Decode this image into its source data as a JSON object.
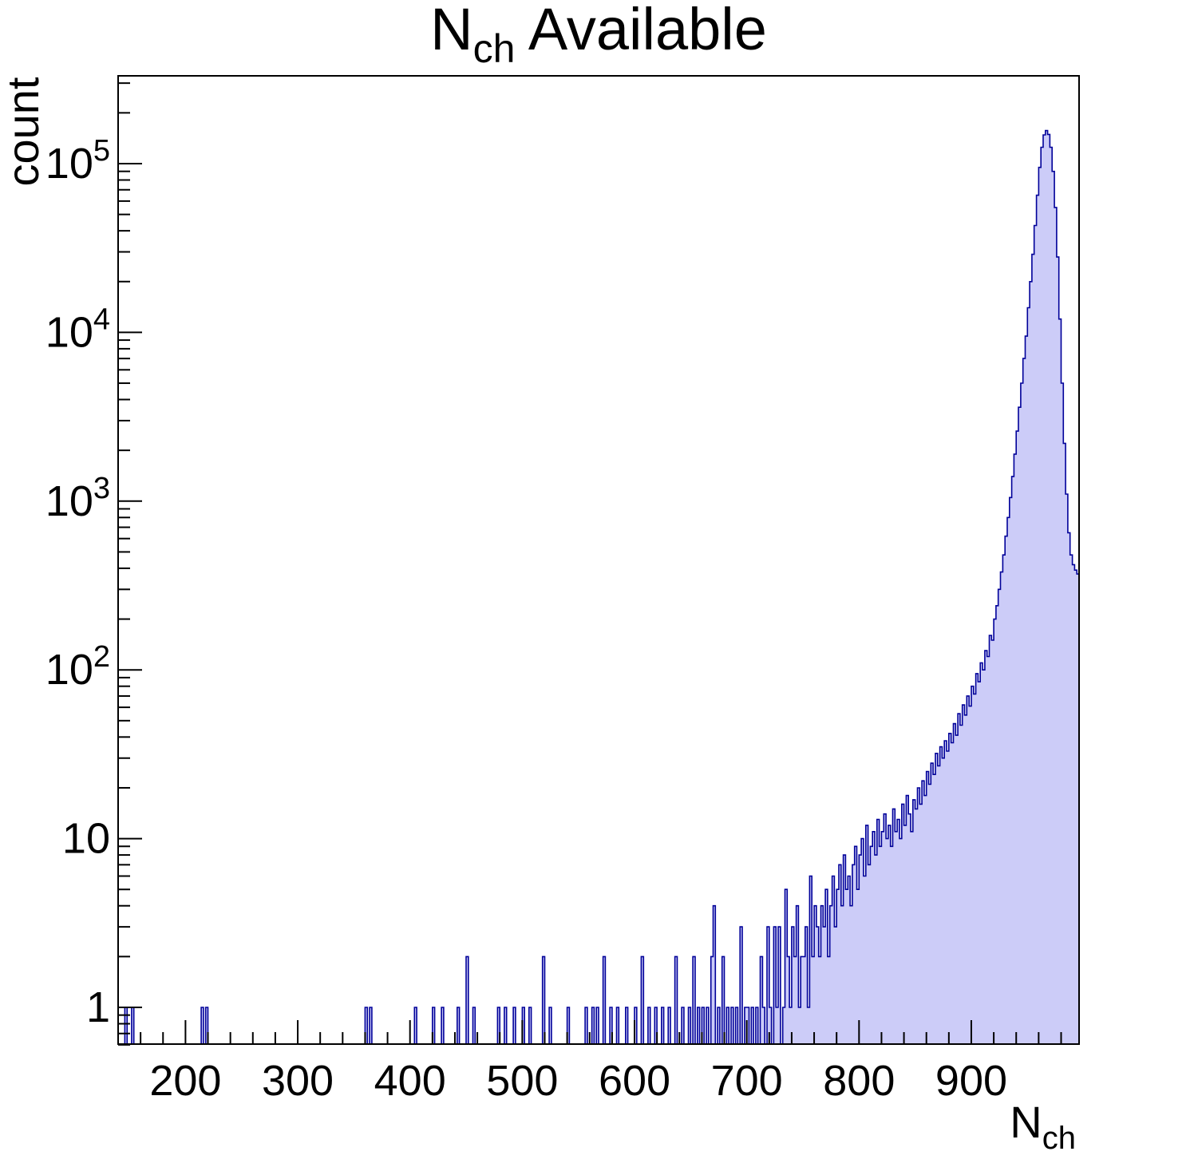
{
  "chart_data": {
    "type": "histogram",
    "title": {
      "base": "N",
      "sub": "ch",
      "rest": " Available"
    },
    "ylabel": "count",
    "xlabel": {
      "base": "N",
      "sub": "ch"
    },
    "colors": {
      "fill": "#ccccf8",
      "line": "#000099",
      "frame": "#000000",
      "background": "#ffffff"
    },
    "y_scale": "log",
    "x_axis": {
      "min": 140,
      "max": 996,
      "major_ticks": [
        200,
        300,
        400,
        500,
        600,
        700,
        800,
        900
      ],
      "minor_step": 20
    },
    "y_axis": {
      "min": 0.6,
      "max": 330000,
      "ticks": [
        {
          "value": 1,
          "label": "1",
          "exp": ""
        },
        {
          "value": 10,
          "label": "10",
          "exp": ""
        },
        {
          "value": 100,
          "label": "10",
          "exp": "2"
        },
        {
          "value": 1000,
          "label": "10",
          "exp": "3"
        },
        {
          "value": 10000,
          "label": "10",
          "exp": "4"
        },
        {
          "value": 100000,
          "label": "10",
          "exp": "5"
        }
      ]
    },
    "bin_width": 2,
    "x_min": 140,
    "sparse_counts": {
      "146": 1,
      "152": 1,
      "214": 1,
      "218": 1,
      "360": 1,
      "364": 1,
      "404": 1,
      "420": 1,
      "428": 1,
      "442": 1,
      "450": 2,
      "456": 1,
      "478": 1,
      "484": 1,
      "492": 1,
      "500": 1,
      "506": 1,
      "518": 2,
      "524": 1,
      "540": 1,
      "556": 1,
      "562": 1,
      "566": 1,
      "572": 2,
      "578": 1,
      "584": 1,
      "592": 1,
      "600": 1,
      "606": 2,
      "612": 1,
      "618": 1,
      "624": 1,
      "630": 1,
      "636": 2,
      "642": 1,
      "648": 1,
      "652": 2,
      "656": 1,
      "660": 1,
      "664": 1,
      "668": 2,
      "670": 4,
      "674": 1,
      "678": 2,
      "682": 1,
      "686": 1,
      "690": 1,
      "694": 3,
      "698": 1,
      "700": 1,
      "704": 1,
      "708": 1,
      "712": 2,
      "714": 1,
      "718": 3,
      "720": 1,
      "724": 3,
      "726": 1,
      "728": 3,
      "732": 1,
      "734": 5,
      "736": 2,
      "738": 1,
      "740": 3,
      "742": 2,
      "744": 4,
      "746": 1,
      "748": 2
    },
    "dense_start": 750,
    "dense_counts": [
      2,
      3,
      1,
      6,
      2,
      4,
      3,
      2,
      4,
      3,
      5,
      2,
      4,
      6,
      3,
      5,
      7,
      4,
      8,
      5,
      6,
      4,
      7,
      9,
      5,
      8,
      10,
      6,
      12,
      7,
      9,
      11,
      8,
      13,
      9,
      11,
      14,
      10,
      12,
      9,
      15,
      11,
      13,
      10,
      16,
      12,
      18,
      14,
      11,
      17,
      15,
      20,
      16,
      22,
      18,
      25,
      21,
      28,
      24,
      32,
      27,
      35,
      30,
      38,
      33,
      42,
      37,
      48,
      41,
      55,
      47,
      62,
      54,
      70,
      61,
      80,
      72,
      95,
      85,
      110,
      100,
      130,
      120,
      160,
      150,
      200,
      240,
      300,
      380,
      480,
      620,
      800,
      1050,
      1400,
      1900,
      2600,
      3600,
      5000,
      7000,
      9500,
      14000,
      20000,
      29000,
      43000,
      65000,
      95000,
      125000,
      148000,
      157000,
      149000,
      125000,
      90000,
      55000,
      28000,
      12000,
      5000,
      2200,
      1100,
      650,
      480,
      420,
      390,
      370
    ]
  }
}
